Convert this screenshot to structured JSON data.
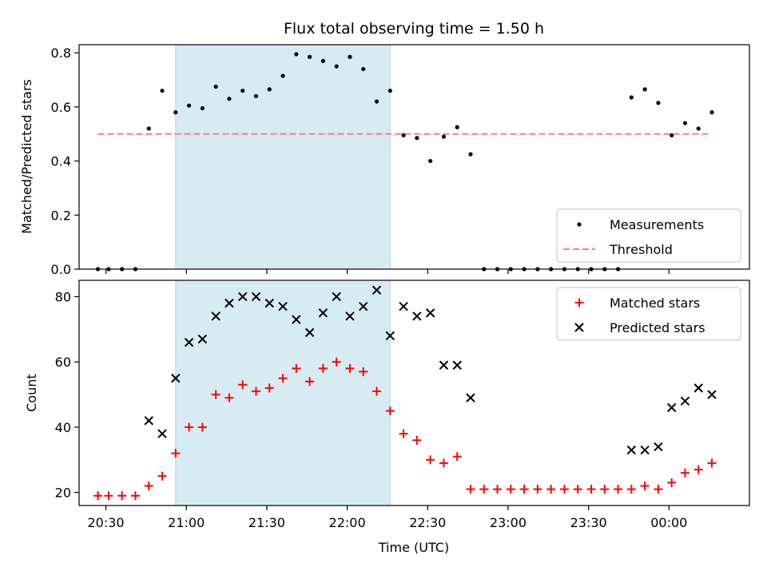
{
  "title": "Flux total observing time = 1.50 h",
  "colors": {
    "shade": "#add8e6",
    "threshold": "#ff7f7f",
    "matched": "#ff0000",
    "predicted": "#000000",
    "measure": "#000000"
  },
  "chart_data": [
    {
      "type": "scatter",
      "panel": "top",
      "ylabel": "Matched/Predicted stars",
      "xlabel": "",
      "xlim": [
        "20:20",
        "00:30"
      ],
      "ylim": [
        0,
        0.83
      ],
      "yticks": [
        0.0,
        0.2,
        0.4,
        0.6,
        0.8
      ],
      "ytick_labels": [
        "0.0",
        "0.2",
        "0.4",
        "0.6",
        "0.8"
      ],
      "xticks": [
        "20:30",
        "21:00",
        "21:30",
        "22:00",
        "22:30",
        "23:00",
        "23:30",
        "00:00"
      ],
      "shaded_interval": [
        "20:56",
        "22:16"
      ],
      "legend": {
        "location": "lower right",
        "entries": [
          "Measurements",
          "Threshold"
        ]
      },
      "threshold": {
        "name": "Threshold",
        "y": 0.5,
        "x_range": [
          "20:27",
          "00:15"
        ],
        "style": "dashed"
      },
      "series": [
        {
          "name": "Measurements",
          "x": [
            "20:27",
            "20:31",
            "20:36",
            "20:41",
            "20:46",
            "20:51",
            "20:56",
            "21:01",
            "21:06",
            "21:11",
            "21:16",
            "21:21",
            "21:26",
            "21:31",
            "21:36",
            "21:41",
            "21:46",
            "21:51",
            "21:56",
            "22:01",
            "22:06",
            "22:11",
            "22:16",
            "22:21",
            "22:26",
            "22:31",
            "22:36",
            "22:41",
            "22:46",
            "22:51",
            "22:56",
            "23:01",
            "23:06",
            "23:11",
            "23:16",
            "23:21",
            "23:26",
            "23:31",
            "23:36",
            "23:41",
            "23:46",
            "23:51",
            "23:56",
            "00:01",
            "00:06",
            "00:11",
            "00:16"
          ],
          "y": [
            0,
            0,
            0,
            0,
            0.52,
            0.66,
            0.58,
            0.605,
            0.595,
            0.675,
            0.63,
            0.66,
            0.64,
            0.665,
            0.715,
            0.795,
            0.785,
            0.77,
            0.75,
            0.785,
            0.74,
            0.62,
            0.66,
            0.495,
            0.485,
            0.4,
            0.49,
            0.525,
            0.425,
            0,
            0,
            0,
            0,
            0,
            0,
            0,
            0,
            0,
            0,
            0,
            0.635,
            0.665,
            0.615,
            0.495,
            0.54,
            0.52,
            0.58
          ]
        }
      ]
    },
    {
      "type": "scatter",
      "panel": "bottom",
      "ylabel": "Count",
      "xlabel": "Time (UTC)",
      "xlim": [
        "20:20",
        "00:30"
      ],
      "ylim": [
        16,
        85
      ],
      "yticks": [
        20,
        40,
        60,
        80
      ],
      "ytick_labels": [
        "20",
        "40",
        "60",
        "80"
      ],
      "xticks": [
        "20:30",
        "21:00",
        "21:30",
        "22:00",
        "22:30",
        "23:00",
        "23:30",
        "00:00"
      ],
      "xtick_labels": [
        "20:30",
        "21:00",
        "21:30",
        "22:00",
        "22:30",
        "23:00",
        "23:30",
        "00:00"
      ],
      "shaded_interval": [
        "20:56",
        "22:16"
      ],
      "legend": {
        "location": "upper right",
        "entries": [
          "Matched stars",
          "Predicted stars"
        ]
      },
      "series": [
        {
          "name": "Matched stars",
          "marker": "+",
          "x": [
            "20:27",
            "20:31",
            "20:36",
            "20:41",
            "20:46",
            "20:51",
            "20:56",
            "21:01",
            "21:06",
            "21:11",
            "21:16",
            "21:21",
            "21:26",
            "21:31",
            "21:36",
            "21:41",
            "21:46",
            "21:51",
            "21:56",
            "22:01",
            "22:06",
            "22:11",
            "22:16",
            "22:21",
            "22:26",
            "22:31",
            "22:36",
            "22:41",
            "22:46",
            "22:51",
            "22:56",
            "23:01",
            "23:06",
            "23:11",
            "23:16",
            "23:21",
            "23:26",
            "23:31",
            "23:36",
            "23:41",
            "23:46",
            "23:51",
            "23:56",
            "00:01",
            "00:06",
            "00:11",
            "00:16"
          ],
          "y": [
            19,
            19,
            19,
            19,
            22,
            25,
            32,
            40,
            40,
            50,
            49,
            53,
            51,
            52,
            55,
            58,
            54,
            58,
            60,
            58,
            57,
            51,
            45,
            38,
            36,
            30,
            29,
            31,
            21,
            21,
            21,
            21,
            21,
            21,
            21,
            21,
            21,
            21,
            21,
            21,
            21,
            22,
            21,
            23,
            26,
            27,
            29
          ]
        },
        {
          "name": "Predicted stars",
          "marker": "x",
          "x": [
            "20:46",
            "20:51",
            "20:56",
            "21:01",
            "21:06",
            "21:11",
            "21:16",
            "21:21",
            "21:26",
            "21:31",
            "21:36",
            "21:41",
            "21:46",
            "21:51",
            "21:56",
            "22:01",
            "22:06",
            "22:11",
            "22:16",
            "22:21",
            "22:26",
            "22:31",
            "22:36",
            "22:41",
            "22:46",
            "23:46",
            "23:51",
            "23:56",
            "00:01",
            "00:06",
            "00:11",
            "00:16"
          ],
          "y": [
            42,
            38,
            55,
            66,
            67,
            74,
            78,
            80,
            80,
            78,
            77,
            73,
            69,
            75,
            80,
            74,
            77,
            82,
            68,
            77,
            74,
            75,
            59,
            59,
            49,
            33,
            33,
            34,
            46,
            48,
            52,
            50
          ]
        }
      ]
    }
  ]
}
